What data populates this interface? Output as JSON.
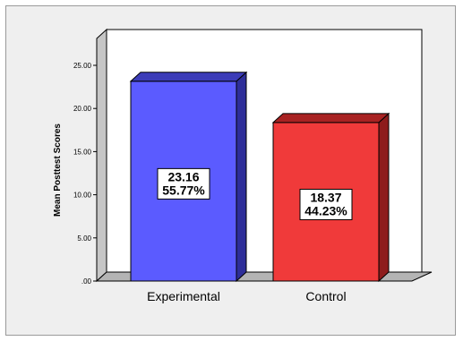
{
  "chart_data": {
    "type": "bar",
    "style": "3d",
    "categories": [
      "Experimental",
      "Control"
    ],
    "values": [
      23.16,
      18.37
    ],
    "data_labels": [
      [
        "23.16",
        "55.77%"
      ],
      [
        "18.37",
        "44.23%"
      ]
    ],
    "ylabel": "Mean Posttest Scores",
    "ylim": [
      0,
      25
    ],
    "yticks": [
      ".00",
      "5.00",
      "10.00",
      "15.00",
      "20.00",
      "25.00"
    ],
    "grid": false,
    "legend": "none",
    "colors": {
      "Experimental": {
        "front": "#5b5bff",
        "side": "#2e2e99",
        "top": "#3c3cb8"
      },
      "Control": {
        "front": "#f03a3a",
        "side": "#8e1c1c",
        "top": "#a82222"
      },
      "background": "#efefef",
      "plot_back": "#ffffff",
      "floor": "#b4b4b4",
      "wall": "#c6c6c6"
    }
  }
}
